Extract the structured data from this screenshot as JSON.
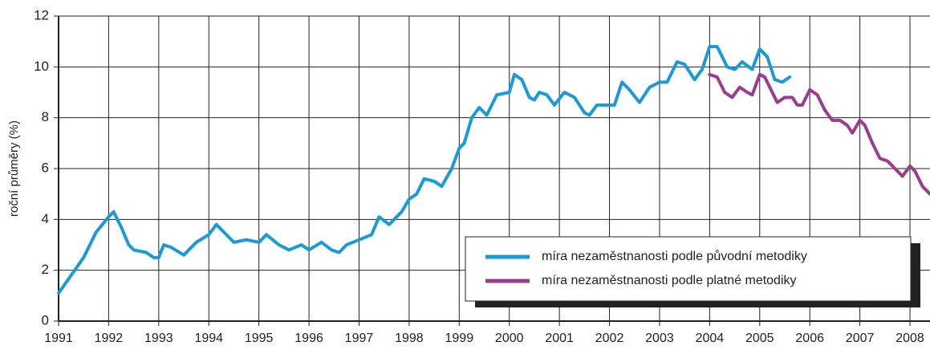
{
  "chart_data": {
    "type": "line",
    "y_label": "roční průměry (%)",
    "xlim": [
      1991,
      2008.4
    ],
    "ylim": [
      0,
      12
    ],
    "xticks": [
      1991,
      1992,
      1993,
      1994,
      1995,
      1996,
      1997,
      1998,
      1999,
      2000,
      2001,
      2002,
      2003,
      2004,
      2005,
      2006,
      2007,
      2008
    ],
    "yticks": [
      0,
      2,
      4,
      6,
      8,
      10,
      12
    ],
    "grid": true,
    "legend": "lower right",
    "series": [
      {
        "name": "míra nezaměstnanosti podle původní metodiky",
        "color": "#1a9ad6",
        "x": [
          1991.0,
          1991.25,
          1991.5,
          1991.75,
          1992.0,
          1992.1,
          1992.25,
          1992.4,
          1992.5,
          1992.75,
          1992.9,
          1993.0,
          1993.1,
          1993.25,
          1993.5,
          1993.75,
          1994.0,
          1994.15,
          1994.4,
          1994.5,
          1994.75,
          1995.0,
          1995.15,
          1995.4,
          1995.6,
          1995.85,
          1996.0,
          1996.25,
          1996.45,
          1996.6,
          1996.75,
          1997.0,
          1997.25,
          1997.4,
          1997.6,
          1997.85,
          1998.0,
          1998.15,
          1998.3,
          1998.5,
          1998.65,
          1998.85,
          1999.0,
          1999.1,
          1999.25,
          1999.4,
          1999.55,
          1999.75,
          2000.0,
          2000.1,
          2000.25,
          2000.4,
          2000.5,
          2000.6,
          2000.75,
          2000.9,
          2001.1,
          2001.3,
          2001.5,
          2001.6,
          2001.75,
          2002.0,
          2002.1,
          2002.25,
          2002.4,
          2002.6,
          2002.8,
          2003.0,
          2003.15,
          2003.35,
          2003.5,
          2003.7,
          2003.85,
          2004.0,
          2004.15,
          2004.35,
          2004.5,
          2004.65,
          2004.85,
          2005.0,
          2005.15,
          2005.3,
          2005.45,
          2005.6
        ],
        "values": [
          1.1,
          1.8,
          2.5,
          3.5,
          4.1,
          4.3,
          3.7,
          3.0,
          2.8,
          2.7,
          2.5,
          2.5,
          3.0,
          2.9,
          2.6,
          3.1,
          3.4,
          3.8,
          3.3,
          3.1,
          3.2,
          3.1,
          3.4,
          3.0,
          2.8,
          3.0,
          2.8,
          3.1,
          2.8,
          2.7,
          3.0,
          3.2,
          3.4,
          4.1,
          3.8,
          4.3,
          4.8,
          5.0,
          5.6,
          5.5,
          5.3,
          6.0,
          6.8,
          7.0,
          8.0,
          8.4,
          8.1,
          8.9,
          9.0,
          9.7,
          9.5,
          8.8,
          8.7,
          9.0,
          8.9,
          8.5,
          9.0,
          8.8,
          8.2,
          8.1,
          8.5,
          8.5,
          8.5,
          9.4,
          9.1,
          8.6,
          9.2,
          9.4,
          9.4,
          10.2,
          10.1,
          9.5,
          9.9,
          10.8,
          10.8,
          10.0,
          9.9,
          10.2,
          9.9,
          10.7,
          10.4,
          9.5,
          9.4,
          9.6
        ]
      },
      {
        "name": "míra nezaměstnanosti podle platné metodiky",
        "color": "#9b3d8c",
        "x": [
          2004.0,
          2004.15,
          2004.3,
          2004.45,
          2004.6,
          2004.75,
          2004.85,
          2005.0,
          2005.1,
          2005.25,
          2005.35,
          2005.5,
          2005.65,
          2005.75,
          2005.85,
          2006.0,
          2006.15,
          2006.3,
          2006.45,
          2006.6,
          2006.75,
          2006.85,
          2007.0,
          2007.1,
          2007.25,
          2007.4,
          2007.55,
          2007.7,
          2007.85,
          2008.0,
          2008.1,
          2008.25,
          2008.4
        ],
        "values": [
          9.7,
          9.6,
          9.0,
          8.8,
          9.2,
          9.0,
          8.9,
          9.7,
          9.6,
          9.0,
          8.6,
          8.8,
          8.8,
          8.5,
          8.5,
          9.1,
          8.9,
          8.3,
          7.9,
          7.9,
          7.7,
          7.4,
          7.9,
          7.7,
          7.0,
          6.4,
          6.3,
          6.0,
          5.7,
          6.1,
          5.9,
          5.3,
          5.0
        ]
      }
    ]
  }
}
